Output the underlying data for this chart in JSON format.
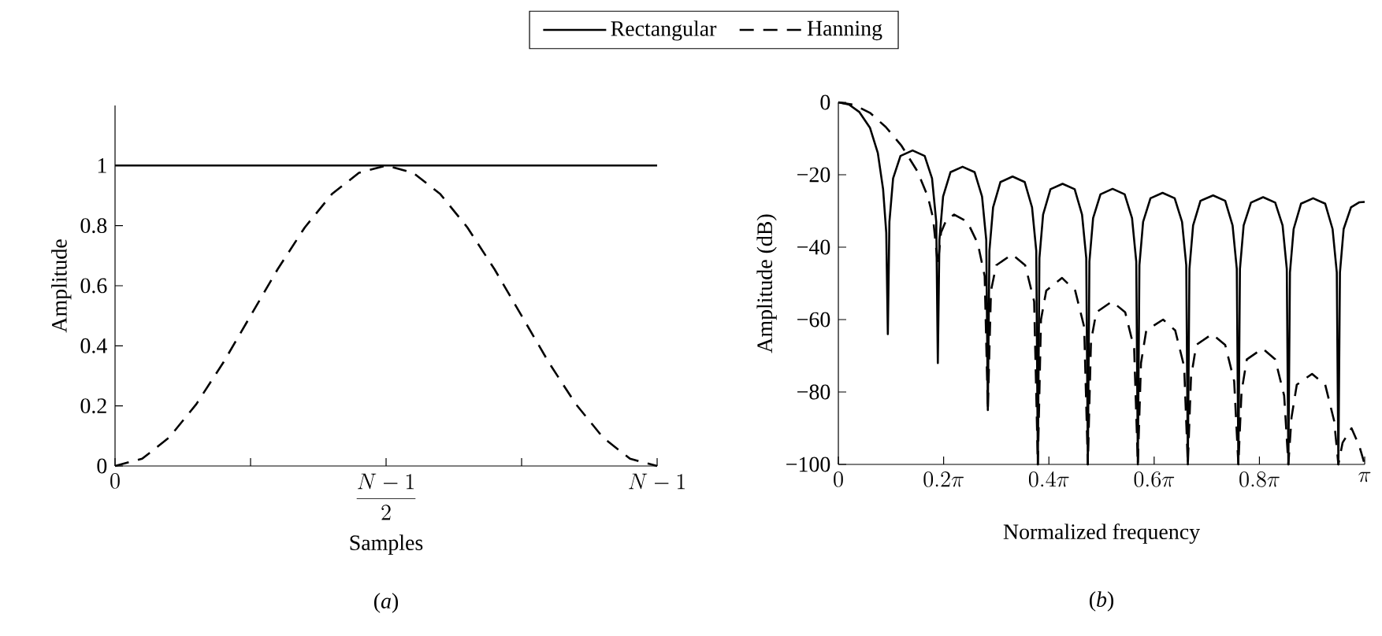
{
  "chart_data": [
    {
      "type": "line",
      "xlabel": "Samples",
      "ylabel": "Amplitude",
      "ylim": [
        0,
        1.2
      ],
      "categories": [
        "0",
        null,
        null,
        null,
        null,
        null,
        null,
        null,
        null,
        null,
        "\\frac{N-1}{2}",
        null,
        null,
        null,
        null,
        null,
        null,
        null,
        null,
        null,
        "N-1"
      ],
      "yticks": [
        0,
        0.2,
        0.4,
        0.6,
        0.8,
        1
      ],
      "legend": "top",
      "marker": "none",
      "grid": false,
      "annotations": [
        "(*a*)"
      ],
      "series": [
        {
          "name": "Rectangular",
          "color": "#000000",
          "line_style": "solid",
          "values": [
            1,
            1,
            1,
            1,
            1,
            1,
            1,
            1,
            1,
            1,
            1,
            1,
            1,
            1,
            1,
            1,
            1,
            1,
            1,
            1,
            1
          ]
        },
        {
          "name": "Hanning",
          "color": "#000000",
          "line_style": "dashed",
          "values": [
            0,
            0.024,
            0.095,
            0.206,
            0.345,
            0.5,
            0.655,
            0.794,
            0.905,
            0.976,
            1,
            0.976,
            0.905,
            0.794,
            0.655,
            0.5,
            0.345,
            0.206,
            0.095,
            0.024,
            0
          ]
        }
      ]
    },
    {
      "type": "line",
      "xlabel": "Normalized frequency",
      "ylabel": "Amplitude (dB)",
      "xlim": [
        0,
        1
      ],
      "ylim": [
        -100,
        0
      ],
      "xticks": [
        {
          "value": 0,
          "label": "0"
        },
        {
          "value": 0.2,
          "label": "0.2\\pi"
        },
        {
          "value": 0.4,
          "label": "0.4\\pi"
        },
        {
          "value": 0.6,
          "label": "0.6\\pi"
        },
        {
          "value": 0.8,
          "label": "0.8\\pi"
        },
        {
          "value": 1,
          "label": "\\pi"
        }
      ],
      "yticks": [
        {
          "value": -100,
          "label": "−100"
        },
        {
          "value": -80,
          "label": "−80"
        },
        {
          "value": -60,
          "label": "−60"
        },
        {
          "value": -40,
          "label": "−40"
        },
        {
          "value": -20,
          "label": "−20"
        },
        {
          "value": 0,
          "label": "0"
        }
      ],
      "marker": "none",
      "grid": false,
      "annotations": [
        "(*b*)"
      ],
      "series": [
        {
          "color": "#000000",
          "line_style": "solid",
          "x": [
            0,
            0.02,
            0.04,
            0.06,
            0.075,
            0.085,
            0.091,
            0.094,
            0.097,
            0.104,
            0.118,
            0.141,
            0.164,
            0.178,
            0.186,
            0.189,
            0.192,
            0.199,
            0.213,
            0.236,
            0.259,
            0.273,
            0.281,
            0.284,
            0.287,
            0.294,
            0.308,
            0.331,
            0.354,
            0.368,
            0.376,
            0.379,
            0.382,
            0.389,
            0.403,
            0.426,
            0.449,
            0.463,
            0.471,
            0.474,
            0.477,
            0.484,
            0.498,
            0.521,
            0.544,
            0.558,
            0.566,
            0.569,
            0.572,
            0.579,
            0.593,
            0.616,
            0.639,
            0.653,
            0.661,
            0.664,
            0.667,
            0.674,
            0.688,
            0.712,
            0.735,
            0.749,
            0.757,
            0.76,
            0.763,
            0.77,
            0.784,
            0.807,
            0.83,
            0.844,
            0.852,
            0.855,
            0.858,
            0.865,
            0.879,
            0.902,
            0.925,
            0.939,
            0.947,
            0.95,
            0.953,
            0.96,
            0.974,
            0.99,
            1
          ],
          "values": [
            0,
            -0.6,
            -2.7,
            -7,
            -14,
            -24,
            -36,
            -64,
            -33,
            -21,
            -14.8,
            -13.3,
            -14.8,
            -21,
            -33,
            -72,
            -38,
            -26,
            -19.3,
            -17.8,
            -19.3,
            -26,
            -38,
            -85,
            -41,
            -29,
            -22,
            -20.5,
            -22,
            -29,
            -41,
            -100,
            -43,
            -31,
            -24,
            -22.5,
            -24,
            -31,
            -43,
            -100,
            -44,
            -32,
            -25.4,
            -23.9,
            -25.4,
            -32,
            -44,
            -100,
            -45,
            -33,
            -26.5,
            -25,
            -26.5,
            -33,
            -45,
            -100,
            -46,
            -34,
            -27.2,
            -25.7,
            -27.2,
            -34,
            -46,
            -100,
            -46,
            -34,
            -27.7,
            -26.2,
            -27.7,
            -34,
            -46,
            -100,
            -47,
            -35,
            -28,
            -26.5,
            -28,
            -35,
            -47,
            -100,
            -47,
            -35,
            -29,
            -27.6,
            -27.5
          ]
        },
        {
          "color": "#000000",
          "line_style": "dashed",
          "x": [
            0,
            0.03,
            0.06,
            0.09,
            0.12,
            0.15,
            0.17,
            0.18,
            0.189,
            0.195,
            0.205,
            0.22,
            0.245,
            0.265,
            0.278,
            0.284,
            0.29,
            0.3,
            0.33,
            0.355,
            0.372,
            0.379,
            0.385,
            0.395,
            0.425,
            0.45,
            0.467,
            0.474,
            0.48,
            0.49,
            0.52,
            0.545,
            0.562,
            0.569,
            0.575,
            0.585,
            0.617,
            0.64,
            0.657,
            0.664,
            0.67,
            0.68,
            0.71,
            0.735,
            0.752,
            0.76,
            0.766,
            0.776,
            0.806,
            0.83,
            0.847,
            0.855,
            0.861,
            0.871,
            0.9,
            0.925,
            0.942,
            0.95,
            0.958,
            0.975,
            0.99,
            1
          ],
          "values": [
            0,
            -0.7,
            -2.9,
            -6.8,
            -12,
            -19,
            -26,
            -32,
            -45,
            -36,
            -32.5,
            -31,
            -33,
            -39,
            -48,
            -85,
            -52,
            -45,
            -42,
            -45,
            -55,
            -100,
            -60,
            -52,
            -48.5,
            -52,
            -62,
            -100,
            -66,
            -58,
            -55,
            -58,
            -68,
            -100,
            -72,
            -63,
            -60,
            -63,
            -73,
            -100,
            -76,
            -67,
            -64,
            -67,
            -77,
            -100,
            -80,
            -71,
            -68,
            -71,
            -81,
            -100,
            -87,
            -78,
            -75,
            -78,
            -88,
            -100,
            -94,
            -90,
            -95,
            -100
          ]
        }
      ]
    }
  ]
}
